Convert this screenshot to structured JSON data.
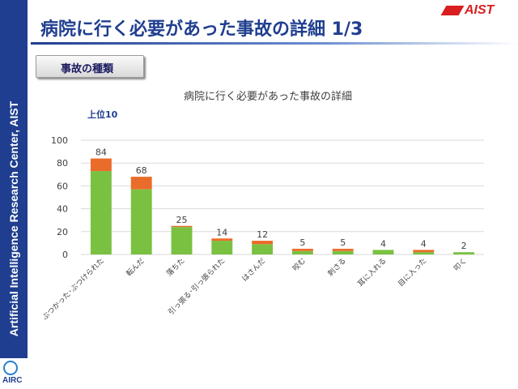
{
  "header": {
    "title": "病院に行く必要があった事故の詳細 1/3",
    "logo_text": "AIST",
    "logo_color": "#d81e1e",
    "title_color": "#1f3e8f"
  },
  "sidebar": {
    "text": "Artificial Intelligence Research Center, AIST",
    "logo_text": "AIRC",
    "color": "#1f3e8f"
  },
  "section_label": "事故の種類",
  "chart_data": {
    "type": "bar",
    "stacked": true,
    "title": "病院に行く必要があった事故の詳細",
    "subtitle": "上位10",
    "xlabel": "",
    "ylabel": "",
    "ylim": [
      0,
      100
    ],
    "yticks": [
      0,
      20,
      40,
      60,
      80,
      100
    ],
    "grid": true,
    "legend": "none",
    "categories": [
      "ぶつかった･ぶつけられた",
      "転んだ",
      "落ちた",
      "引っ張る･引っ張られた",
      "はさんだ",
      "咬む",
      "刺さる",
      "耳に入れる",
      "目に入った",
      "叩く"
    ],
    "totals": [
      84,
      68,
      25,
      14,
      12,
      5,
      5,
      4,
      4,
      2
    ],
    "series": [
      {
        "color": "#7ac142",
        "values": [
          73,
          57,
          24,
          12,
          9,
          3,
          3,
          4,
          2,
          2
        ]
      },
      {
        "color": "#ea6c2a",
        "values": [
          11,
          11,
          1,
          2,
          3,
          2,
          2,
          0,
          2,
          0
        ]
      }
    ]
  }
}
